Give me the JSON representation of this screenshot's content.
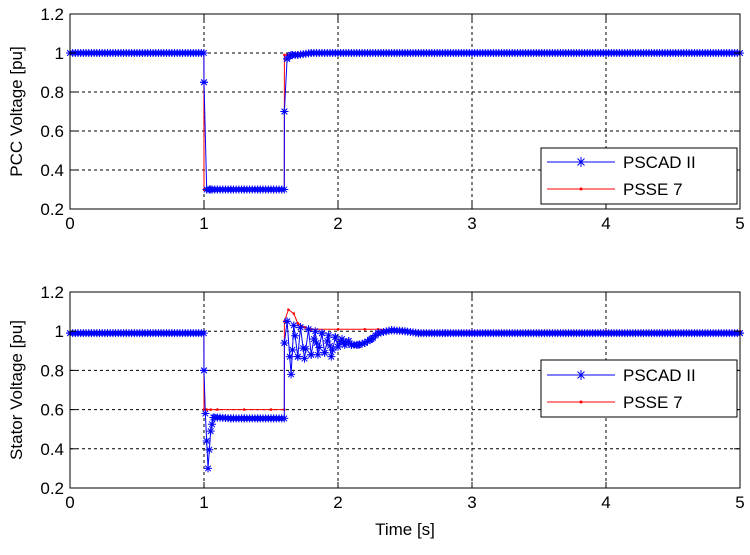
{
  "chart_data": [
    {
      "type": "line",
      "title": "",
      "xlabel": "",
      "ylabel": "PCC Voltage [pu]",
      "xlim": [
        0,
        5
      ],
      "ylim": [
        0.2,
        1.2
      ],
      "xticks": [
        "0",
        "1",
        "2",
        "3",
        "4",
        "5"
      ],
      "yticks": [
        "0.2",
        "0.4",
        "0.6",
        "0.8",
        "1",
        "1.2"
      ],
      "grid": true,
      "legend_position": "bottom-right",
      "series": [
        {
          "name": "PSCAD II",
          "color": "#0000ff",
          "marker": "asterisk",
          "x": [
            0,
            0.999,
            1.0,
            1.02,
            1.05,
            1.1,
            1.2,
            1.3,
            1.4,
            1.5,
            1.599,
            1.6,
            1.62,
            1.65,
            1.7,
            1.8,
            2.0,
            2.5,
            3.0,
            3.5,
            4.0,
            4.5,
            5.0
          ],
          "y": [
            1.0,
            1.0,
            0.85,
            0.3,
            0.3,
            0.3,
            0.3,
            0.3,
            0.3,
            0.3,
            0.3,
            0.7,
            0.97,
            0.99,
            0.99,
            1.0,
            1.0,
            1.0,
            1.0,
            1.0,
            1.0,
            1.0,
            1.0
          ]
        },
        {
          "name": "PSSE 7",
          "color": "#ff0000",
          "marker": "dot",
          "x": [
            0,
            0.999,
            1.0,
            1.02,
            1.1,
            1.3,
            1.5,
            1.599,
            1.6,
            1.62,
            1.7,
            2.0,
            3.0,
            4.0,
            5.0
          ],
          "y": [
            1.0,
            1.0,
            0.3,
            0.3,
            0.3,
            0.3,
            0.3,
            0.3,
            0.99,
            0.99,
            1.0,
            1.0,
            1.0,
            1.0,
            1.0
          ]
        }
      ]
    },
    {
      "type": "line",
      "title": "",
      "xlabel": "Time [s]",
      "ylabel": "Stator Voltage [pu]",
      "xlim": [
        0,
        5
      ],
      "ylim": [
        0.2,
        1.2
      ],
      "xticks": [
        "0",
        "1",
        "2",
        "3",
        "4",
        "5"
      ],
      "yticks": [
        "0.2",
        "0.4",
        "0.6",
        "0.8",
        "1",
        "1.2"
      ],
      "grid": true,
      "legend_position": "bottom-right",
      "series": [
        {
          "name": "PSCAD II",
          "color": "#0000ff",
          "marker": "asterisk",
          "x": [
            0,
            0.999,
            1.0,
            1.01,
            1.03,
            1.05,
            1.07,
            1.1,
            1.2,
            1.3,
            1.4,
            1.5,
            1.599,
            1.6,
            1.62,
            1.65,
            1.67,
            1.7,
            1.72,
            1.75,
            1.78,
            1.8,
            1.83,
            1.85,
            1.88,
            1.9,
            1.93,
            1.95,
            1.98,
            2.0,
            2.03,
            2.05,
            2.08,
            2.1,
            2.15,
            2.2,
            2.25,
            2.3,
            2.4,
            2.5,
            2.6,
            2.8,
            3.0,
            3.5,
            4.0,
            4.5,
            5.0
          ],
          "y": [
            0.99,
            0.99,
            0.8,
            0.58,
            0.3,
            0.49,
            0.56,
            0.56,
            0.555,
            0.555,
            0.555,
            0.555,
            0.555,
            0.94,
            1.05,
            0.78,
            1.03,
            0.87,
            1.02,
            0.86,
            1.01,
            0.88,
            1.0,
            0.88,
            0.99,
            0.89,
            0.98,
            0.87,
            0.97,
            0.92,
            0.96,
            0.93,
            0.95,
            0.93,
            0.93,
            0.94,
            0.96,
            0.99,
            1.005,
            1.0,
            0.99,
            0.99,
            0.99,
            0.99,
            0.99,
            0.99,
            0.99
          ]
        },
        {
          "name": "PSSE 7",
          "color": "#ff0000",
          "marker": "dot",
          "x": [
            0,
            0.999,
            1.0,
            1.02,
            1.05,
            1.1,
            1.3,
            1.5,
            1.599,
            1.6,
            1.63,
            1.67,
            1.7,
            1.75,
            1.8,
            2.0,
            2.2,
            2.3,
            2.5,
            3.0,
            4.0,
            5.0
          ],
          "y": [
            0.99,
            0.99,
            0.6,
            0.6,
            0.6,
            0.6,
            0.6,
            0.6,
            0.6,
            1.05,
            1.11,
            1.09,
            1.04,
            1.02,
            1.01,
            1.01,
            1.01,
            1.01,
            1.0,
            1.0,
            1.0,
            1.0
          ]
        }
      ]
    }
  ]
}
